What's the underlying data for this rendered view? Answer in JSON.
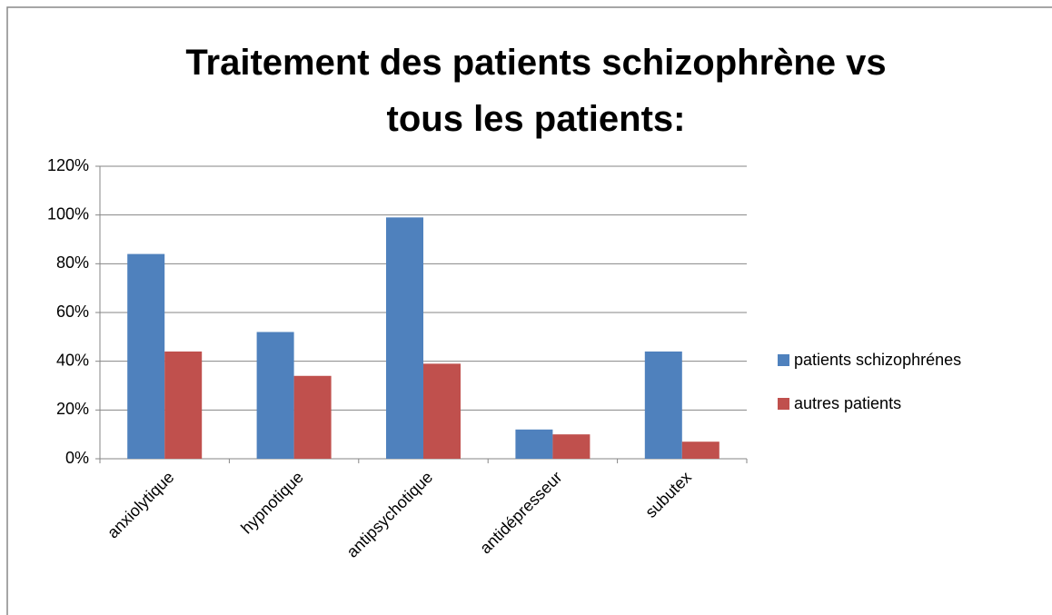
{
  "chart_data": {
    "type": "bar",
    "title": "Traitement des patients schizophrène vs tous les patients:",
    "categories": [
      "anxiolytique",
      "hypnotique",
      "antipsychotique",
      "antidépresseur",
      "subutex"
    ],
    "series": [
      {
        "name": "patients schizophrénes",
        "color": "#4f81bd",
        "values": [
          84,
          52,
          99,
          12,
          44
        ]
      },
      {
        "name": "autres patients",
        "color": "#c0504d",
        "values": [
          44,
          34,
          39,
          10,
          7
        ]
      }
    ],
    "ylim": [
      0,
      120
    ],
    "yticks": [
      {
        "value": 0,
        "label": "0%"
      },
      {
        "value": 20,
        "label": "20%"
      },
      {
        "value": 40,
        "label": "40%"
      },
      {
        "value": 60,
        "label": "60%"
      },
      {
        "value": 80,
        "label": "80%"
      },
      {
        "value": 100,
        "label": "100%"
      },
      {
        "value": 120,
        "label": "120%"
      }
    ],
    "grid": true,
    "legend": "right"
  }
}
